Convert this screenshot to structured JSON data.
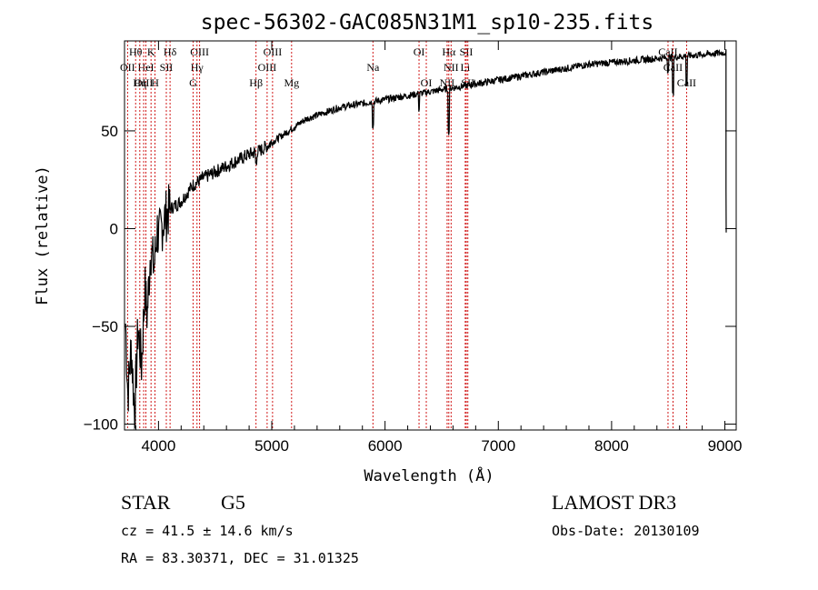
{
  "chart_data": {
    "type": "line",
    "title": "spec-56302-GAC085N31M1_sp10-235.fits",
    "xlabel": "Wavelength (Å)",
    "ylabel": "Flux (relative)",
    "xlim": [
      3700,
      9100
    ],
    "ylim": [
      -103,
      96
    ],
    "xticks": [
      4000,
      5000,
      6000,
      7000,
      8000,
      9000
    ],
    "yticks": [
      -100,
      -50,
      0,
      50
    ],
    "line_color": "#000000",
    "marker_color": "#cc0000",
    "series": [
      {
        "name": "flux",
        "x": [
          3700,
          3730,
          3760,
          3790,
          3820,
          3850,
          3880,
          3900,
          3930,
          3960,
          3990,
          4000,
          4050,
          4100,
          4150,
          4200,
          4250,
          4300,
          4400,
          4500,
          4600,
          4700,
          4800,
          4900,
          5000,
          5100,
          5200,
          5300,
          5400,
          5500,
          5600,
          5700,
          5800,
          5900,
          6000,
          6100,
          6200,
          6300,
          6400,
          6500,
          6600,
          6700,
          6800,
          6900,
          7000,
          7200,
          7400,
          7600,
          7800,
          8000,
          8200,
          8400,
          8600,
          8800,
          9000,
          9050
        ],
        "y": [
          -30,
          -85,
          -60,
          -95,
          -50,
          -70,
          -30,
          -45,
          -10,
          -20,
          0,
          -5,
          5,
          10,
          12,
          14,
          18,
          22,
          26,
          29,
          32,
          35,
          38,
          40,
          44,
          48,
          52,
          56,
          58,
          60,
          62,
          63,
          64,
          65,
          66,
          67,
          68,
          69,
          70,
          71,
          72,
          73,
          74,
          75,
          76,
          78,
          80,
          82,
          84,
          85,
          86,
          87,
          88,
          89,
          90,
          91
        ]
      }
    ],
    "line_markers": [
      {
        "label": "Hθ",
        "wl": 3798,
        "row": 1
      },
      {
        "label": "K",
        "wl": 3934,
        "row": 1
      },
      {
        "label": "Hδ",
        "wl": 4102,
        "row": 1
      },
      {
        "label": "OIII",
        "wl": 4363,
        "row": 1
      },
      {
        "label": "OIII",
        "wl": 5007,
        "row": 1
      },
      {
        "label": "OI",
        "wl": 6300,
        "row": 1
      },
      {
        "label": "Hα",
        "wl": 6563,
        "row": 1
      },
      {
        "label": "SII",
        "wl": 6717,
        "row": 1
      },
      {
        "label": "CaII",
        "wl": 8498,
        "row": 1
      },
      {
        "label": "OII",
        "wl": 3727,
        "row": 2
      },
      {
        "label": "HeI",
        "wl": 3889,
        "row": 2
      },
      {
        "label": "SII",
        "wl": 4069,
        "row": 2
      },
      {
        "label": "Hγ",
        "wl": 4340,
        "row": 2
      },
      {
        "label": "OIII",
        "wl": 4959,
        "row": 2
      },
      {
        "label": "Na",
        "wl": 5893,
        "row": 2
      },
      {
        "label": "NII",
        "wl": 6583,
        "row": 2
      },
      {
        "label": "Li",
        "wl": 6708,
        "row": 2
      },
      {
        "label": "CaII",
        "wl": 8542,
        "row": 2
      },
      {
        "label": "OIII",
        "wl": 3869,
        "row": 3
      },
      {
        "label": "Hη",
        "wl": 3835,
        "row": 3
      },
      {
        "label": "H",
        "wl": 3969,
        "row": 3
      },
      {
        "label": "G",
        "wl": 4305,
        "row": 3
      },
      {
        "label": "Hβ",
        "wl": 4861,
        "row": 3
      },
      {
        "label": "Mg",
        "wl": 5175,
        "row": 3
      },
      {
        "label": "OI",
        "wl": 6364,
        "row": 3
      },
      {
        "label": "NII",
        "wl": 6548,
        "row": 3
      },
      {
        "label": "SII",
        "wl": 6731,
        "row": 3
      },
      {
        "label": "CaII",
        "wl": 8662,
        "row": 3
      }
    ]
  },
  "info": {
    "object_type": "STAR",
    "subclass": "G5",
    "survey": "LAMOST DR3",
    "redshift": "cz = 41.5 ± 14.6 km/s",
    "obs_date": "Obs-Date: 20130109",
    "coords": "RA =  83.30371, DEC =  31.01325"
  }
}
